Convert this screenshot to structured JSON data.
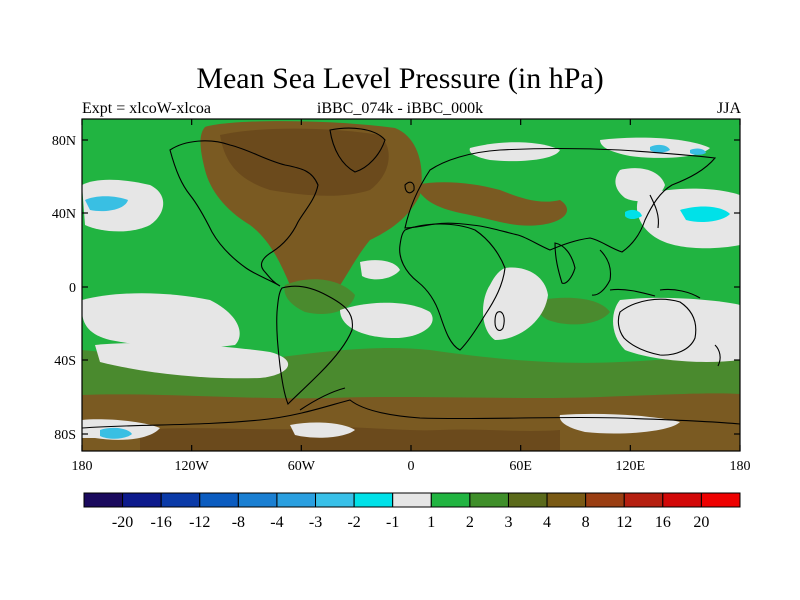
{
  "title": "Mean Sea Level Pressure (in hPa)",
  "left_subtitle": "Expt = xlcoW-xlcoa",
  "center_subtitle": "iBBC_074k - iBBC_000k",
  "right_subtitle": "JJA",
  "lat_ticks": [
    "80N",
    "40N",
    "0",
    "40S",
    "80S"
  ],
  "lon_ticks": [
    "180",
    "120W",
    "60W",
    "0",
    "60E",
    "120E",
    "180"
  ],
  "colorbar": {
    "labels": [
      "-20",
      "-16",
      "-12",
      "-8",
      "-4",
      "-3",
      "-2",
      "-1",
      "1",
      "2",
      "3",
      "4",
      "8",
      "12",
      "16",
      "20"
    ],
    "colors": [
      "#1b0a5e",
      "#0d1a8c",
      "#0a3aa8",
      "#0b5cc0",
      "#1a7fd2",
      "#2a9fe0",
      "#38c0e8",
      "#00e1e8",
      "#e6e6e6",
      "#21b441",
      "#3f8f2a",
      "#5b6a1b",
      "#7a5a15",
      "#9a3e12",
      "#b51f10",
      "#d20808",
      "#ee0000"
    ]
  },
  "palette": {
    "green": "#21b441",
    "olive": "#4a8a2e",
    "brown": "#7a5a22",
    "dark_brown": "#6b4a1c",
    "light_gray": "#e6e6e6",
    "cyan": "#00e1e8",
    "light_blue": "#39bfe3"
  }
}
